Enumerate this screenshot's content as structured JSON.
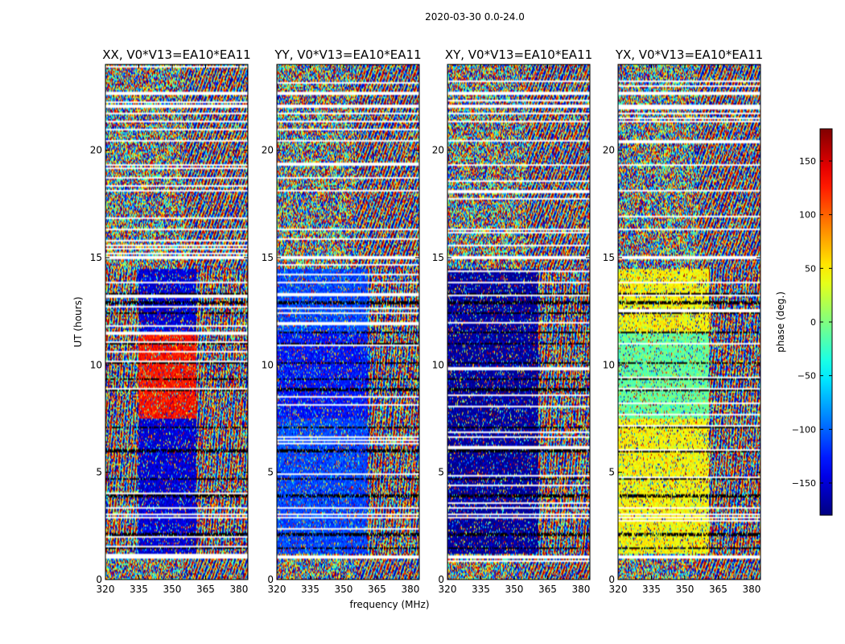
{
  "figure": {
    "suptitle": "2020-03-30 0.0-24.0",
    "xlabel": "frequency (MHz)",
    "ylabel": "UT (hours)",
    "colorbar_label": "phase (deg.)"
  },
  "chart_data": {
    "type": "heatmap",
    "colormap": "jet",
    "x_range": [
      320,
      384
    ],
    "y_range": [
      0,
      24
    ],
    "x_ticks": [
      320,
      335,
      350,
      365,
      380
    ],
    "x_tick_labels": [
      "320",
      "335",
      "350",
      "365",
      "380"
    ],
    "y_ticks": [
      0,
      5,
      10,
      15,
      20
    ],
    "y_tick_labels": [
      "0",
      "5",
      "10",
      "15",
      "20"
    ],
    "colorbar": {
      "range": [
        -180,
        180
      ],
      "ticks": [
        -150,
        -100,
        -50,
        0,
        50,
        100,
        150
      ],
      "tick_labels": [
        "−150",
        "−100",
        "−50",
        "0",
        "50",
        "100",
        "150"
      ]
    },
    "panels": [
      {
        "title": "XX, V0*V13=EA10*EA11",
        "night_low_phase": -150,
        "night_high_phase": 130,
        "feature_band_mhz": [
          335,
          361
        ]
      },
      {
        "title": "YY, V0*V13=EA10*EA11",
        "night_low_phase": -110,
        "night_high_phase": -130,
        "feature_band_mhz": [
          320,
          361
        ]
      },
      {
        "title": "XY, V0*V13=EA10*EA11",
        "night_low_phase": -170,
        "night_high_phase": -170,
        "feature_band_mhz": [
          320,
          361
        ]
      },
      {
        "title": "YX, V0*V13=EA10*EA11",
        "night_low_phase": 45,
        "night_high_phase": -10,
        "feature_band_mhz": [
          320,
          361
        ]
      }
    ],
    "flagged_gaps_ut": [
      [
        0.95,
        1.15
      ],
      [
        14.95,
        15.05
      ],
      [
        22.0,
        22.1
      ],
      [
        22.55,
        22.7
      ],
      [
        20.4,
        20.5
      ],
      [
        17.0,
        17.06
      ],
      [
        18.1,
        18.15
      ],
      [
        19.3,
        19.35
      ],
      [
        21.3,
        21.35
      ],
      [
        21.7,
        21.75
      ],
      [
        23.0,
        23.05
      ],
      [
        15.8,
        15.85
      ],
      [
        16.3,
        16.35
      ],
      [
        2.85,
        2.9
      ],
      [
        3.0,
        3.05
      ],
      [
        3.3,
        3.35
      ],
      [
        13.2,
        13.25
      ],
      [
        13.8,
        13.85
      ]
    ],
    "dark_flag_lines_ut": [
      8.85,
      8.9,
      9.35,
      11.0,
      11.5,
      12.4,
      12.9,
      7.1,
      6.0,
      4.7,
      3.9,
      2.1,
      1.45,
      13.3,
      10.1
    ]
  }
}
